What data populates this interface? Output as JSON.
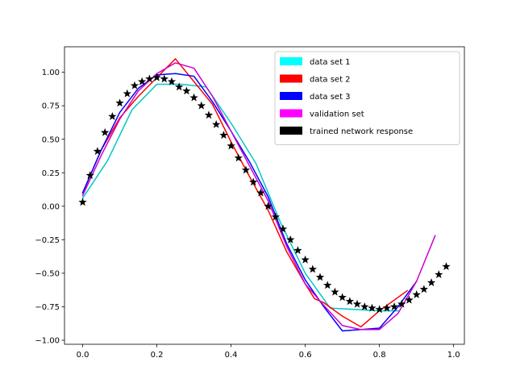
{
  "chart_data": {
    "type": "line",
    "xlim": [
      -0.049,
      1.029
    ],
    "ylim": [
      -1.03,
      1.19
    ],
    "x_ticks": [
      0.0,
      0.2,
      0.4,
      0.6,
      0.8,
      1.0
    ],
    "x_tick_labels": [
      "0.0",
      "0.2",
      "0.4",
      "0.6",
      "0.8",
      "1.0"
    ],
    "y_ticks": [
      -1.0,
      -0.75,
      -0.5,
      -0.25,
      0.0,
      0.25,
      0.5,
      0.75,
      1.0
    ],
    "y_tick_labels": [
      "−1.00",
      "−0.75",
      "−0.50",
      "−0.25",
      "0.00",
      "0.25",
      "0.50",
      "0.75",
      "1.00"
    ],
    "grid": false,
    "legend_position": "top-right",
    "series": [
      {
        "name": "data set 1",
        "color": "#00c8c8",
        "legend_color": "#00ffff",
        "style": "line",
        "x": [
          0.0,
          0.067,
          0.133,
          0.2,
          0.267,
          0.333,
          0.4,
          0.467,
          0.533,
          0.6,
          0.667,
          0.733,
          0.8,
          0.85
        ],
        "y": [
          0.06,
          0.34,
          0.72,
          0.91,
          0.91,
          0.89,
          0.62,
          0.32,
          -0.12,
          -0.5,
          -0.76,
          -0.77,
          -0.78,
          -0.78
        ]
      },
      {
        "name": "data set 2",
        "color": "#ff0000",
        "legend_color": "#ff0000",
        "style": "line",
        "x": [
          0.0,
          0.05,
          0.1,
          0.15,
          0.2,
          0.25,
          0.3,
          0.35,
          0.4,
          0.45,
          0.5,
          0.55,
          0.6,
          0.625,
          0.65,
          0.7,
          0.75,
          0.8,
          0.875
        ],
        "y": [
          0.1,
          0.42,
          0.66,
          0.82,
          0.96,
          1.1,
          0.93,
          0.76,
          0.48,
          0.22,
          -0.03,
          -0.34,
          -0.58,
          -0.69,
          -0.72,
          -0.82,
          -0.9,
          -0.78,
          -0.63
        ]
      },
      {
        "name": "data set 3",
        "color": "#0000ff",
        "legend_color": "#0000ff",
        "style": "line",
        "x": [
          0.0,
          0.05,
          0.1,
          0.15,
          0.2,
          0.25,
          0.3,
          0.35,
          0.4,
          0.45,
          0.5,
          0.55,
          0.6,
          0.65,
          0.7,
          0.75,
          0.8,
          0.85,
          0.9
        ],
        "y": [
          0.1,
          0.42,
          0.7,
          0.88,
          0.98,
          0.99,
          0.97,
          0.78,
          0.56,
          0.33,
          0.07,
          -0.28,
          -0.55,
          -0.75,
          -0.93,
          -0.92,
          -0.91,
          -0.75,
          -0.56
        ]
      },
      {
        "name": "validation set",
        "color": "#cc00cc",
        "legend_color": "#ff00ff",
        "style": "line",
        "x": [
          0.0,
          0.05,
          0.1,
          0.15,
          0.2,
          0.25,
          0.3,
          0.35,
          0.4,
          0.45,
          0.5,
          0.55,
          0.6,
          0.65,
          0.7,
          0.75,
          0.8,
          0.85,
          0.9,
          0.95
        ],
        "y": [
          0.08,
          0.38,
          0.65,
          0.86,
          0.99,
          1.07,
          1.03,
          0.82,
          0.56,
          0.3,
          0.04,
          -0.3,
          -0.58,
          -0.74,
          -0.89,
          -0.92,
          -0.92,
          -0.8,
          -0.56,
          -0.22
        ]
      },
      {
        "name": "trained network response",
        "color": "#000000",
        "legend_color": "#000000",
        "style": "marker",
        "x": [
          0.0,
          0.02,
          0.04,
          0.06,
          0.08,
          0.1,
          0.12,
          0.14,
          0.16,
          0.18,
          0.2,
          0.22,
          0.24,
          0.26,
          0.28,
          0.3,
          0.32,
          0.34,
          0.36,
          0.38,
          0.4,
          0.42,
          0.44,
          0.46,
          0.48,
          0.5,
          0.52,
          0.54,
          0.56,
          0.58,
          0.6,
          0.62,
          0.64,
          0.66,
          0.68,
          0.7,
          0.72,
          0.74,
          0.76,
          0.78,
          0.8,
          0.82,
          0.84,
          0.86,
          0.88,
          0.9,
          0.92,
          0.94,
          0.96,
          0.98
        ],
        "y": [
          0.03,
          0.23,
          0.41,
          0.55,
          0.67,
          0.77,
          0.84,
          0.9,
          0.93,
          0.95,
          0.96,
          0.95,
          0.93,
          0.89,
          0.86,
          0.81,
          0.75,
          0.68,
          0.61,
          0.53,
          0.45,
          0.36,
          0.27,
          0.18,
          0.1,
          0.0,
          -0.08,
          -0.17,
          -0.25,
          -0.33,
          -0.4,
          -0.47,
          -0.53,
          -0.59,
          -0.64,
          -0.68,
          -0.71,
          -0.73,
          -0.75,
          -0.76,
          -0.77,
          -0.76,
          -0.75,
          -0.73,
          -0.7,
          -0.66,
          -0.62,
          -0.57,
          -0.51,
          -0.45
        ]
      }
    ]
  }
}
